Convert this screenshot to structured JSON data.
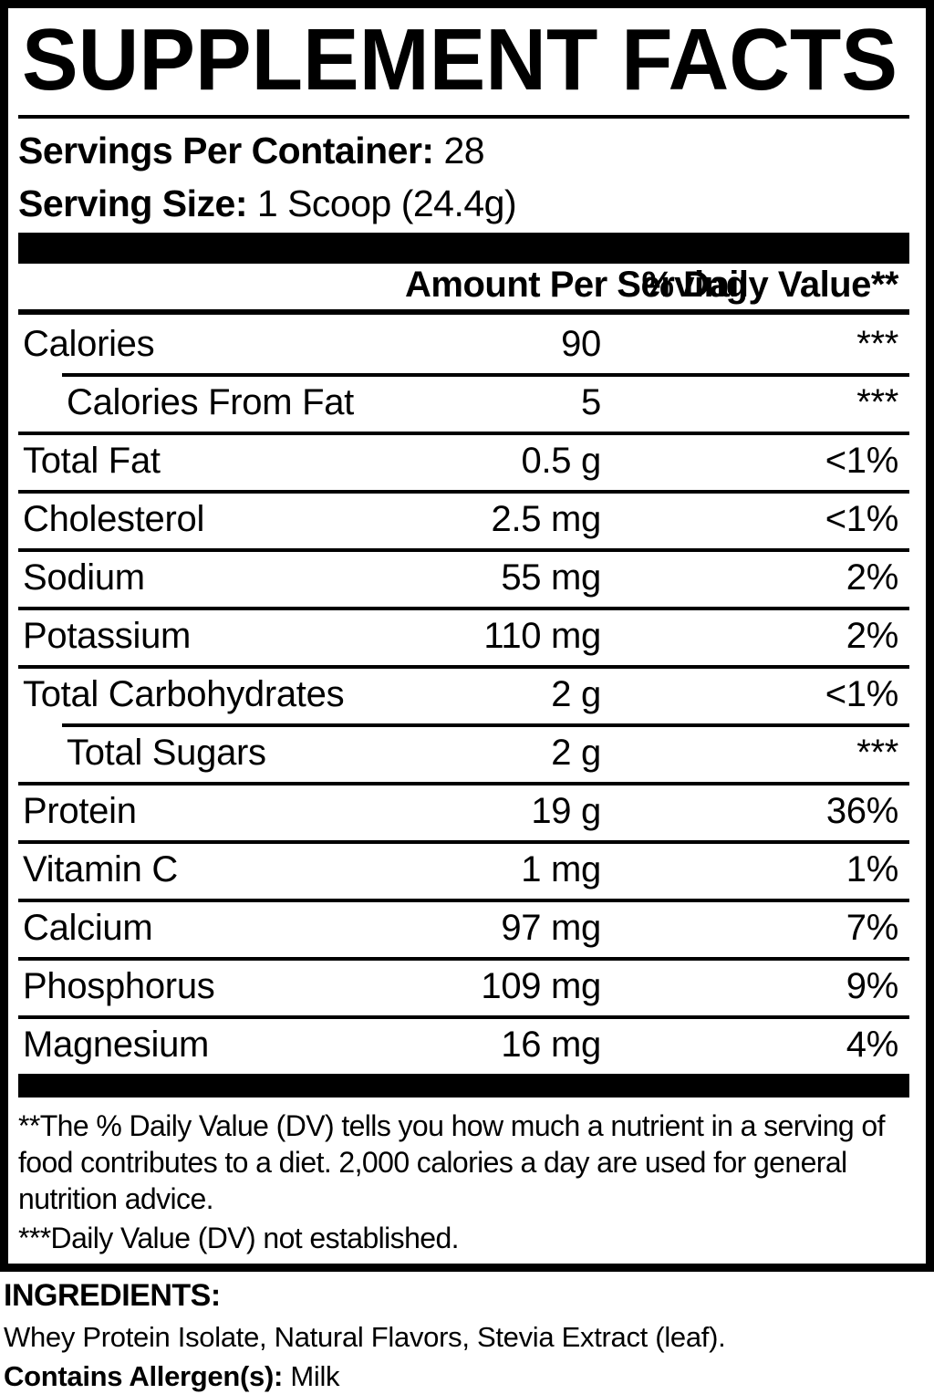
{
  "panel": {
    "title": "SUPPLEMENT FACTS",
    "servings_per_container": {
      "label": "Servings Per Container:",
      "value": "28"
    },
    "serving_size": {
      "label": "Serving Size:",
      "value": "1 Scoop (24.4g)"
    },
    "columns": {
      "amount": "Amount Per Serving",
      "dv": "% Daily Value**"
    },
    "rows": [
      {
        "name": "Calories",
        "amount": "90",
        "dv": "***"
      },
      {
        "name": "Calories From Fat",
        "amount": "5",
        "dv": "***"
      },
      {
        "name": "Total Fat",
        "amount": "0.5 g",
        "dv": "<1%"
      },
      {
        "name": "Cholesterol",
        "amount": "2.5 mg",
        "dv": "<1%"
      },
      {
        "name": "Sodium",
        "amount": "55 mg",
        "dv": "2%"
      },
      {
        "name": "Potassium",
        "amount": "110 mg",
        "dv": "2%"
      },
      {
        "name": "Total Carbohydrates",
        "amount": "2 g",
        "dv": "<1%"
      },
      {
        "name": "Total Sugars",
        "amount": "2 g",
        "dv": "***"
      },
      {
        "name": "Protein",
        "amount": "19 g",
        "dv": "36%"
      },
      {
        "name": "Vitamin C",
        "amount": "1 mg",
        "dv": "1%"
      },
      {
        "name": "Calcium",
        "amount": "97 mg",
        "dv": "7%"
      },
      {
        "name": "Phosphorus",
        "amount": "109 mg",
        "dv": "9%"
      },
      {
        "name": "Magnesium",
        "amount": "16 mg",
        "dv": "4%"
      }
    ],
    "footnotes": {
      "dv_note": "**The % Daily Value (DV) tells you how much a nutrient in a serving of food contributes to a diet. 2,000 calories a day are used for general nutrition advice.",
      "not_established": "***Daily Value (DV) not established."
    }
  },
  "ingredients": {
    "heading": "INGREDIENTS:",
    "list": "Whey Protein Isolate, Natural Flavors, Stevia Extract (leaf).",
    "allergen_label": "Contains Allergen(s):",
    "allergen_value": "Milk"
  },
  "colors": {
    "text": "#000000",
    "background": "#ffffff"
  }
}
